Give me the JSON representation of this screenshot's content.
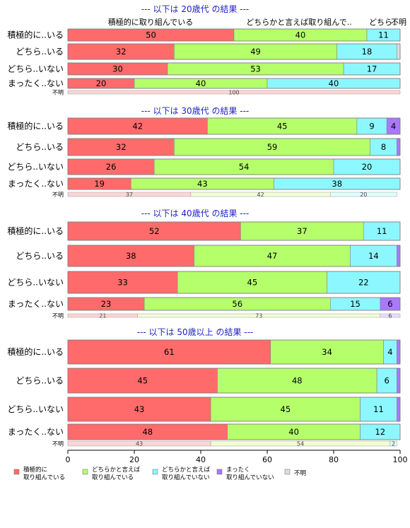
{
  "chart_data": {
    "type": "bar",
    "orientation": "horizontal",
    "stacked": "percent",
    "xlim": [
      0,
      100
    ],
    "x_ticks": [
      0,
      20,
      40,
      60,
      80,
      100
    ],
    "legend_position": "bottom",
    "legend": [
      {
        "name": "積極的に\n取り組んでいる",
        "color": "#FF6B6B"
      },
      {
        "name": "どちらかと言えば\n取り組んでいる",
        "color": "#B5FF6B"
      },
      {
        "name": "どちらかと言えば\n取り組んでいない",
        "color": "#8CF7FF"
      },
      {
        "name": "まったく\n取り組んでいない",
        "color": "#AA77FF"
      },
      {
        "name": "不明",
        "color": "#DDDDDD"
      }
    ],
    "column_header_labels": [
      "積極的に取り組んでいる",
      "どちらかと言えば取り組んで..",
      "どちら..",
      "不明"
    ],
    "panels": [
      {
        "title": "--- 以下は 20歳代 の結果 ---",
        "rows": [
          {
            "label": "積極的に..いる",
            "values": [
              50,
              40,
              11,
              0,
              0
            ]
          },
          {
            "label": "どちら..いる",
            "values": [
              32,
              49,
              18,
              0,
              2
            ]
          },
          {
            "label": "どちら..いない",
            "values": [
              30,
              53,
              17,
              0,
              0
            ]
          },
          {
            "label": "まったく..ない",
            "values": [
              20,
              40,
              40,
              0,
              0
            ]
          }
        ],
        "unknown_row": {
          "label": "不明",
          "values": [
            100,
            0,
            0,
            0,
            0
          ]
        }
      },
      {
        "title": "--- 以下は 30歳代 の結果 ---",
        "rows": [
          {
            "label": "積極的に..いる",
            "values": [
              42,
              45,
              9,
              4,
              0
            ]
          },
          {
            "label": "どちら..いる",
            "values": [
              32,
              59,
              8,
              1,
              0
            ]
          },
          {
            "label": "どちら..いない",
            "values": [
              26,
              54,
              20,
              0,
              0
            ]
          },
          {
            "label": "まったく..ない",
            "values": [
              19,
              43,
              38,
              0,
              0
            ]
          }
        ],
        "unknown_row": {
          "label": "不明",
          "values": [
            37,
            42,
            20,
            0,
            0
          ]
        }
      },
      {
        "title": "--- 以下は 40歳代 の結果 ---",
        "rows": [
          {
            "label": "積極的に..いる",
            "values": [
              52,
              37,
              11,
              0,
              0
            ]
          },
          {
            "label": "どちら..いる",
            "values": [
              38,
              47,
              14,
              1,
              0
            ]
          },
          {
            "label": "どちら..いない",
            "values": [
              33,
              45,
              22,
              0,
              0
            ]
          },
          {
            "label": "まったく..ない",
            "values": [
              23,
              56,
              15,
              6,
              0
            ]
          }
        ],
        "unknown_row": {
          "label": "不明",
          "values": [
            21,
            73,
            0,
            6,
            0
          ]
        }
      },
      {
        "title": "--- 以下は 50歳以上 の結果 ---",
        "rows": [
          {
            "label": "積極的に..いる",
            "values": [
              61,
              34,
              4,
              1,
              0
            ]
          },
          {
            "label": "どちら..いる",
            "values": [
              45,
              48,
              6,
              1,
              0
            ]
          },
          {
            "label": "どちら..いない",
            "values": [
              43,
              45,
              11,
              1,
              0
            ]
          },
          {
            "label": "まったく..ない",
            "values": [
              48,
              40,
              12,
              0,
              0
            ]
          }
        ],
        "unknown_row": {
          "label": "不明",
          "values": [
            43,
            54,
            2,
            0,
            0
          ]
        }
      }
    ]
  }
}
